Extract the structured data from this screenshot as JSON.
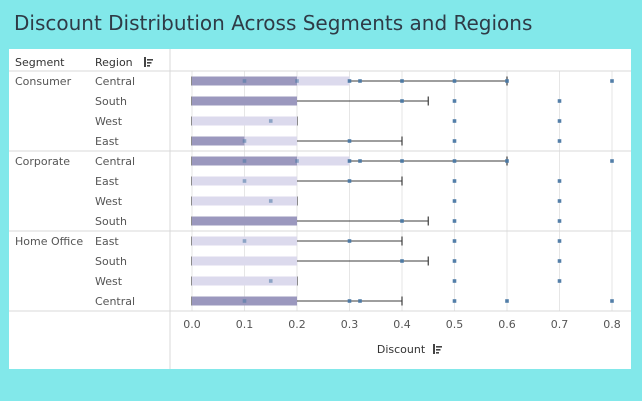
{
  "title": "Discount Distribution Across Segments and Regions",
  "headers": {
    "segment": "Segment",
    "region": "Region"
  },
  "colors": {
    "background": "#82e8ea",
    "box_lower": "#9b98be",
    "box_upper": "#dcdaed",
    "point": "#4a78a4",
    "whisker": "#3c3c3c",
    "grid": "#e6e6e6",
    "divider": "#d8d8d8"
  },
  "sort_icon": "sort-descending-icon",
  "chart_data": {
    "type": "boxplot",
    "title": "Discount Distribution Across Segments and Regions",
    "xlabel": "Discount",
    "xlim": [
      -0.035,
      0.82
    ],
    "xticks": [
      0.0,
      0.1,
      0.2,
      0.3,
      0.4,
      0.5,
      0.6,
      0.7,
      0.8
    ],
    "xtick_labels": [
      "0.0",
      "0.1",
      "0.2",
      "0.3",
      "0.4",
      "0.5",
      "0.6",
      "0.7",
      "0.8"
    ],
    "grid": true,
    "segments": [
      {
        "name": "Consumer",
        "rows": [
          {
            "region": "Central",
            "q1": 0.0,
            "median": 0.2,
            "q3": 0.3,
            "whisker_low": 0.0,
            "whisker_high": 0.6,
            "points": [
              0.1,
              0.2,
              0.3,
              0.32,
              0.4,
              0.5,
              0.6,
              0.8
            ]
          },
          {
            "region": "South",
            "q1": 0.0,
            "median": 0.2,
            "q3": 0.2,
            "whisker_low": 0.0,
            "whisker_high": 0.45,
            "points": [
              0.4,
              0.5,
              0.7
            ]
          },
          {
            "region": "West",
            "q1": 0.0,
            "median": 0.0,
            "q3": 0.2,
            "whisker_low": 0.0,
            "whisker_high": 0.2,
            "points": [
              0.15,
              0.5,
              0.7
            ]
          },
          {
            "region": "East",
            "q1": 0.0,
            "median": 0.1,
            "q3": 0.2,
            "whisker_low": 0.0,
            "whisker_high": 0.4,
            "points": [
              0.1,
              0.3,
              0.5,
              0.7
            ]
          }
        ]
      },
      {
        "name": "Corporate",
        "rows": [
          {
            "region": "Central",
            "q1": 0.0,
            "median": 0.2,
            "q3": 0.3,
            "whisker_low": 0.0,
            "whisker_high": 0.6,
            "points": [
              0.1,
              0.2,
              0.3,
              0.32,
              0.4,
              0.5,
              0.6,
              0.8
            ]
          },
          {
            "region": "East",
            "q1": 0.0,
            "median": 0.0,
            "q3": 0.2,
            "whisker_low": 0.0,
            "whisker_high": 0.4,
            "points": [
              0.1,
              0.3,
              0.5,
              0.7
            ]
          },
          {
            "region": "West",
            "q1": 0.0,
            "median": 0.0,
            "q3": 0.2,
            "whisker_low": 0.0,
            "whisker_high": 0.2,
            "points": [
              0.15,
              0.5,
              0.7
            ]
          },
          {
            "region": "South",
            "q1": 0.0,
            "median": 0.2,
            "q3": 0.2,
            "whisker_low": 0.0,
            "whisker_high": 0.45,
            "points": [
              0.4,
              0.5,
              0.7
            ]
          }
        ]
      },
      {
        "name": "Home Office",
        "rows": [
          {
            "region": "East",
            "q1": 0.0,
            "median": 0.0,
            "q3": 0.2,
            "whisker_low": 0.0,
            "whisker_high": 0.4,
            "points": [
              0.1,
              0.3,
              0.5,
              0.7
            ]
          },
          {
            "region": "South",
            "q1": 0.0,
            "median": 0.0,
            "q3": 0.2,
            "whisker_low": 0.0,
            "whisker_high": 0.45,
            "points": [
              0.4,
              0.5,
              0.7
            ]
          },
          {
            "region": "West",
            "q1": 0.0,
            "median": 0.0,
            "q3": 0.2,
            "whisker_low": 0.0,
            "whisker_high": 0.2,
            "points": [
              0.15,
              0.5,
              0.7
            ]
          },
          {
            "region": "Central",
            "q1": 0.0,
            "median": 0.2,
            "q3": 0.2,
            "whisker_low": 0.0,
            "whisker_high": 0.4,
            "points": [
              0.1,
              0.3,
              0.32,
              0.5,
              0.6,
              0.8
            ]
          }
        ]
      }
    ]
  }
}
